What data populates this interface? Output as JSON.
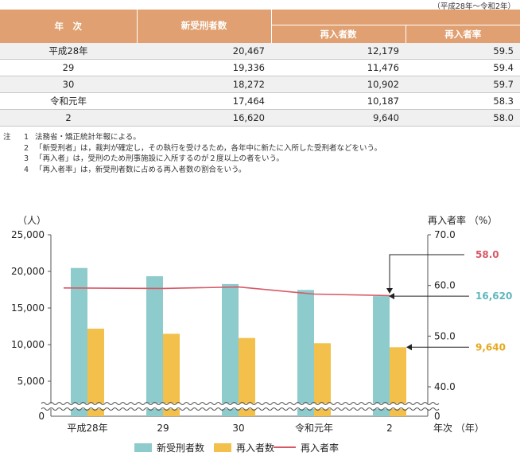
{
  "table": {
    "period": "（平成28年～令和2年）",
    "headers": {
      "year": "年　次",
      "new": "新受刑者数",
      "re": "再入者数",
      "rate": "再入者率"
    },
    "rows": [
      {
        "year": "平成28年",
        "new": "20,467",
        "re": "12,179",
        "rate": "59.5"
      },
      {
        "year": "29",
        "new": "19,336",
        "re": "11,476",
        "rate": "59.4"
      },
      {
        "year": "30",
        "new": "18,272",
        "re": "10,902",
        "rate": "59.7"
      },
      {
        "year": "令和元年",
        "new": "17,464",
        "re": "10,187",
        "rate": "58.3"
      },
      {
        "year": "2",
        "new": "16,620",
        "re": "9,640",
        "rate": "58.0"
      }
    ]
  },
  "notes": {
    "label": "注",
    "items": [
      {
        "num": "1",
        "text": "法務省・矯正統計年報による。"
      },
      {
        "num": "2",
        "text": "「新受刑者」は，裁判が確定し，その執行を受けるため，各年中に新たに入所した受刑者などをいう。"
      },
      {
        "num": "3",
        "text": "「再入者」は，受刑のため刑事施設に入所するのが２度以上の者をいう。"
      },
      {
        "num": "4",
        "text": "「再入者率」は，新受刑者数に占める再入者数の割合をいう。"
      }
    ]
  },
  "chart_data": {
    "type": "bar",
    "categories": [
      "平成28年",
      "29",
      "30",
      "令和元年",
      "2"
    ],
    "series": [
      {
        "name": "新受刑者数",
        "type": "bar",
        "axis": "left",
        "color": "#8ecbcd",
        "values": [
          20467,
          19336,
          18272,
          17464,
          16620
        ]
      },
      {
        "name": "再入者数",
        "type": "bar",
        "axis": "left",
        "color": "#f2c04b",
        "values": [
          12179,
          11476,
          10902,
          10187,
          9640
        ]
      },
      {
        "name": "再入者率",
        "type": "line",
        "axis": "right",
        "color": "#d65a66",
        "values": [
          59.5,
          59.4,
          59.7,
          58.3,
          58.0
        ]
      }
    ],
    "left_axis": {
      "label": "（人）",
      "ticks": [
        "25,000",
        "20,000",
        "15,000",
        "10,000",
        "5,000",
        "0"
      ],
      "ylim": [
        0,
        25000
      ],
      "broken": true
    },
    "right_axis": {
      "label": "再入者率 （%）",
      "ticks": [
        "70.0",
        "60.0",
        "50.0",
        "40.0",
        "0"
      ],
      "ylim": [
        0,
        70
      ],
      "broken": true
    },
    "xlabel": "年次 （年）",
    "annotations": [
      {
        "text": "58.0",
        "color": "#d65a66"
      },
      {
        "text": "16,620",
        "color": "#5fb7bd"
      },
      {
        "text": "9,640",
        "color": "#e6a91f"
      }
    ],
    "legend": "bottom"
  },
  "colors": {
    "header_bg": "#e0a071",
    "band_bg": "#f0f0f0"
  }
}
